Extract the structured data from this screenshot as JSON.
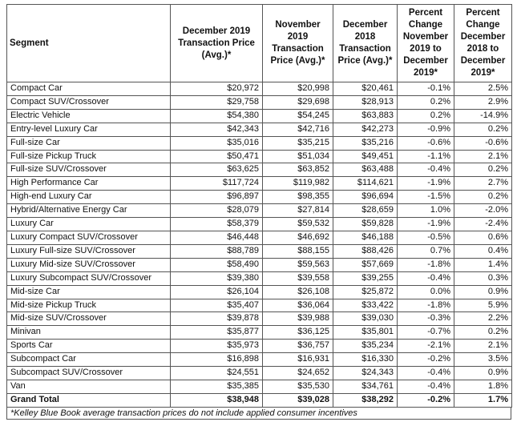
{
  "table": {
    "columns": [
      "Segment",
      "December 2019 Transaction Price (Avg.)*",
      "November 2019 Transaction Price (Avg.)*",
      "December 2018 Transaction Price (Avg.)*",
      "Percent Change November 2019 to December 2019*",
      "Percent Change December 2018 to December 2019*"
    ],
    "rows": [
      [
        "Compact Car",
        "$20,972",
        "$20,998",
        "$20,461",
        "-0.1%",
        "2.5%"
      ],
      [
        "Compact SUV/Crossover",
        "$29,758",
        "$29,698",
        "$28,913",
        "0.2%",
        "2.9%"
      ],
      [
        "Electric Vehicle",
        "$54,380",
        "$54,245",
        "$63,883",
        "0.2%",
        "-14.9%"
      ],
      [
        "Entry-level Luxury Car",
        "$42,343",
        "$42,716",
        "$42,273",
        "-0.9%",
        "0.2%"
      ],
      [
        "Full-size Car",
        "$35,016",
        "$35,215",
        "$35,216",
        "-0.6%",
        "-0.6%"
      ],
      [
        "Full-size Pickup Truck",
        "$50,471",
        "$51,034",
        "$49,451",
        "-1.1%",
        "2.1%"
      ],
      [
        "Full-size SUV/Crossover",
        "$63,625",
        "$63,852",
        "$63,488",
        "-0.4%",
        "0.2%"
      ],
      [
        "High Performance Car",
        "$117,724",
        "$119,982",
        "$114,621",
        "-1.9%",
        "2.7%"
      ],
      [
        "High-end Luxury Car",
        "$96,897",
        "$98,355",
        "$96,694",
        "-1.5%",
        "0.2%"
      ],
      [
        "Hybrid/Alternative Energy Car",
        "$28,079",
        "$27,814",
        "$28,659",
        "1.0%",
        "-2.0%"
      ],
      [
        "Luxury Car",
        "$58,379",
        "$59,532",
        "$59,828",
        "-1.9%",
        "-2.4%"
      ],
      [
        "Luxury Compact SUV/Crossover",
        "$46,448",
        "$46,692",
        "$46,188",
        "-0.5%",
        "0.6%"
      ],
      [
        "Luxury Full-size SUV/Crossover",
        "$88,789",
        "$88,155",
        "$88,426",
        "0.7%",
        "0.4%"
      ],
      [
        "Luxury Mid-size SUV/Crossover",
        "$58,490",
        "$59,563",
        "$57,669",
        "-1.8%",
        "1.4%"
      ],
      [
        "Luxury Subcompact SUV/Crossover",
        "$39,380",
        "$39,558",
        "$39,255",
        "-0.4%",
        "0.3%"
      ],
      [
        "Mid-size Car",
        "$26,104",
        "$26,108",
        "$25,872",
        "0.0%",
        "0.9%"
      ],
      [
        "Mid-size Pickup Truck",
        "$35,407",
        "$36,064",
        "$33,422",
        "-1.8%",
        "5.9%"
      ],
      [
        "Mid-size SUV/Crossover",
        "$39,878",
        "$39,988",
        "$39,030",
        "-0.3%",
        "2.2%"
      ],
      [
        "Minivan",
        "$35,877",
        "$36,125",
        "$35,801",
        "-0.7%",
        "0.2%"
      ],
      [
        "Sports Car",
        "$35,973",
        "$36,757",
        "$35,234",
        "-2.1%",
        "2.1%"
      ],
      [
        "Subcompact Car",
        "$16,898",
        "$16,931",
        "$16,330",
        "-0.2%",
        "3.5%"
      ],
      [
        "Subcompact SUV/Crossover",
        "$24,551",
        "$24,652",
        "$24,343",
        "-0.4%",
        "0.9%"
      ],
      [
        "Van",
        "$35,385",
        "$35,530",
        "$34,761",
        "-0.4%",
        "1.8%"
      ]
    ],
    "total": [
      "Grand Total",
      "$38,948",
      "$39,028",
      "$38,292",
      "-0.2%",
      "1.7%"
    ],
    "footnote": "*Kelley Blue Book average transaction prices do not include applied consumer incentives"
  }
}
